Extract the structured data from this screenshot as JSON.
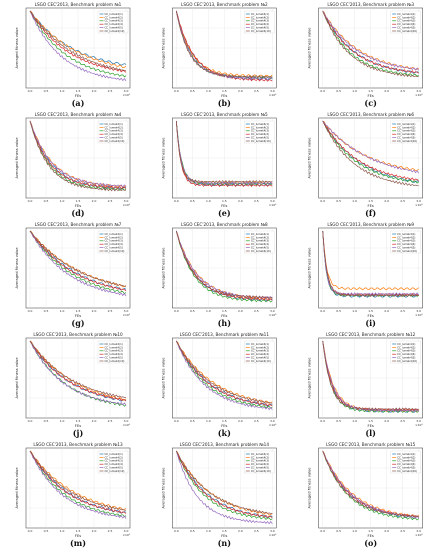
{
  "figure": {
    "x_axis_label": "FEs",
    "y_axis_label": "Averaged fitness value",
    "x_exponent_label": "×10⁶",
    "legend_labels": [
      "CC_lumek4(1)",
      "CC_lumek4(2)",
      "CC_lumek4(3)",
      "CC_lumek4(4)",
      "CC_lumek4(5)",
      "CC_lumek4(10)"
    ],
    "colors": [
      "#1f77b4",
      "#ff7f0e",
      "#2ca02c",
      "#d62728",
      "#9467bd",
      "#8c564b"
    ]
  },
  "chart_data": [
    {
      "panel": "(a)",
      "title": "LSGO CEC'2013, Benchmark problem №1",
      "type": "line",
      "x_ticks": [
        "0.0",
        "0.5",
        "1.0",
        "1.5",
        "2.0",
        "2.5",
        "3.0"
      ],
      "y_scale": "log",
      "legend": "top-right"
    },
    {
      "panel": "(b)",
      "title": "LSGO CEC'2013, Benchmark problem №2",
      "type": "line",
      "x_ticks": [
        "0.0",
        "0.5",
        "1.0",
        "1.5",
        "2.0",
        "2.5",
        "3.0"
      ],
      "y_scale": "log",
      "legend": "top-right"
    },
    {
      "panel": "(c)",
      "title": "LSGO CEC'2013, Benchmark problem №3",
      "type": "line",
      "x_ticks": [
        "0.0",
        "0.5",
        "1.0",
        "1.5",
        "2.0",
        "2.5",
        "3.0"
      ],
      "y_scale": "log",
      "legend": "top-right"
    },
    {
      "panel": "(d)",
      "title": "LSGO CEC'2013, Benchmark problem №4",
      "type": "line",
      "x_ticks": [
        "0.0",
        "0.5",
        "1.0",
        "1.5",
        "2.0",
        "2.5",
        "3.0"
      ],
      "y_scale": "log",
      "legend": "top-right"
    },
    {
      "panel": "(e)",
      "title": "LSGO CEC'2013, Benchmark problem №5",
      "type": "line",
      "x_ticks": [
        "0.0",
        "0.5",
        "1.0",
        "1.5",
        "2.0",
        "2.5",
        "3.0"
      ],
      "y_scale": "log",
      "legend": "top-right"
    },
    {
      "panel": "(f)",
      "title": "LSGO CEC'2013, Benchmark problem №6",
      "type": "line",
      "x_ticks": [
        "0.0",
        "0.5",
        "1.0",
        "1.5",
        "2.0",
        "2.5",
        "3.0"
      ],
      "y_scale": "log",
      "legend": "top-right"
    },
    {
      "panel": "(g)",
      "title": "LSGO CEC'2013, Benchmark problem №7",
      "type": "line",
      "x_ticks": [
        "0.0",
        "0.5",
        "1.0",
        "1.5",
        "2.0",
        "2.5",
        "3.0"
      ],
      "y_scale": "log",
      "legend": "top-right"
    },
    {
      "panel": "(h)",
      "title": "LSGO CEC'2013, Benchmark problem №8",
      "type": "line",
      "x_ticks": [
        "0.0",
        "0.5",
        "1.0",
        "1.5",
        "2.0",
        "2.5",
        "3.0"
      ],
      "y_scale": "log",
      "legend": "top-right"
    },
    {
      "panel": "(i)",
      "title": "LSGO CEC'2013, Benchmark problem №9",
      "type": "line",
      "x_ticks": [
        "0.0",
        "0.5",
        "1.0",
        "1.5",
        "2.0",
        "2.5",
        "3.0"
      ],
      "y_scale": "log",
      "legend": "top-right"
    },
    {
      "panel": "(j)",
      "title": "LSGO CEC'2013, Benchmark problem №10",
      "type": "line",
      "x_ticks": [
        "0.0",
        "0.5",
        "1.0",
        "1.5",
        "2.0",
        "2.5",
        "3.0"
      ],
      "y_scale": "log",
      "legend": "top-right"
    },
    {
      "panel": "(k)",
      "title": "LSGO CEC'2013, Benchmark problem №11",
      "type": "line",
      "x_ticks": [
        "0.0",
        "0.5",
        "1.0",
        "1.5",
        "2.0",
        "2.5",
        "3.0"
      ],
      "y_scale": "log",
      "legend": "top-right"
    },
    {
      "panel": "(l)",
      "title": "LSGO CEC'2013, Benchmark problem №12",
      "type": "line",
      "x_ticks": [
        "0.0",
        "0.5",
        "1.0",
        "1.5",
        "2.0",
        "2.5",
        "3.0"
      ],
      "y_scale": "log",
      "legend": "top-right"
    },
    {
      "panel": "(m)",
      "title": "LSGO CEC'2013, Benchmark problem №13",
      "type": "line",
      "x_ticks": [
        "0.0",
        "0.5",
        "1.0",
        "1.5",
        "2.0",
        "2.5",
        "3.0"
      ],
      "y_scale": "log",
      "legend": "top-right"
    },
    {
      "panel": "(n)",
      "title": "LSGO CEC'2013, Benchmark problem №14",
      "type": "line",
      "x_ticks": [
        "0.0",
        "0.5",
        "1.0",
        "1.5",
        "2.0",
        "2.5",
        "3.0"
      ],
      "y_scale": "log",
      "legend": "top-right"
    },
    {
      "panel": "(o)",
      "title": "LSGO CEC'2013, Benchmark problem №15",
      "type": "line",
      "x_ticks": [
        "0.0",
        "0.5",
        "1.0",
        "1.5",
        "2.0",
        "2.5",
        "3.0"
      ],
      "y_scale": "log",
      "legend": "top-right"
    }
  ]
}
